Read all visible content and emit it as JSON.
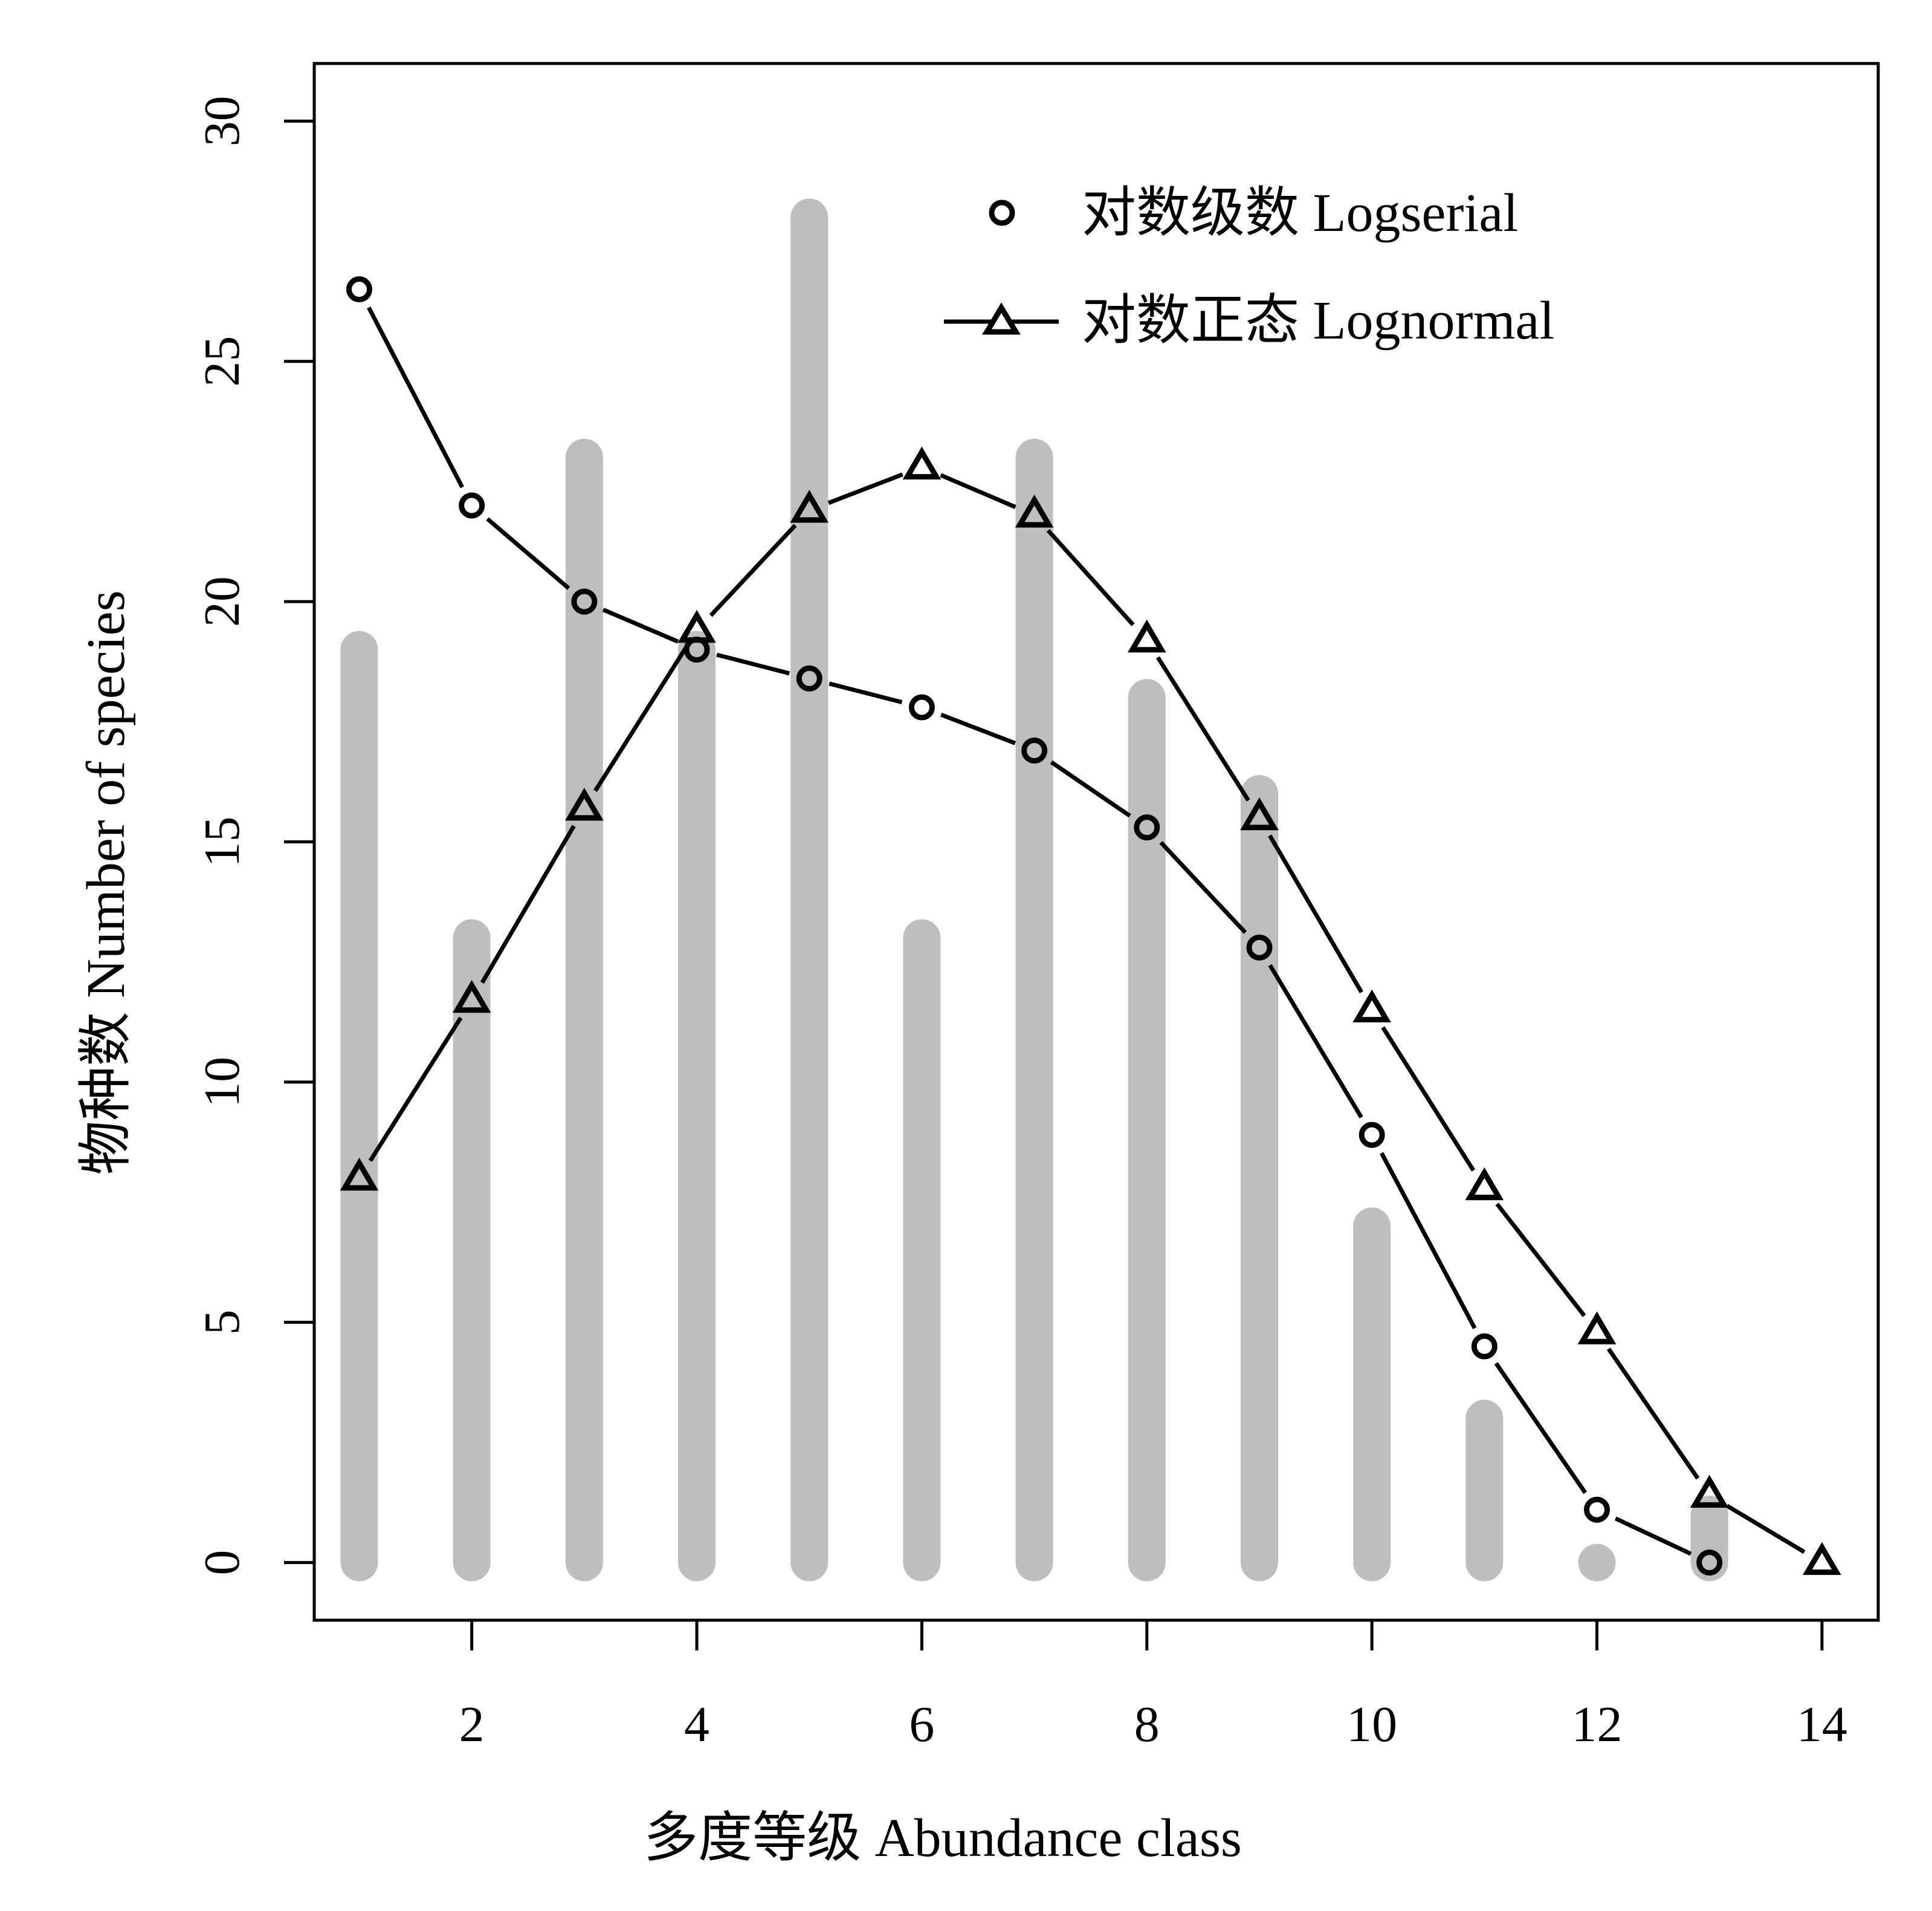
{
  "chart_data": {
    "type": "bar",
    "x": [
      1,
      2,
      3,
      4,
      5,
      6,
      7,
      8,
      9,
      10,
      11,
      12,
      13
    ],
    "observed": [
      19,
      13,
      23,
      19,
      28,
      13,
      23,
      18,
      16,
      7,
      3,
      0,
      1
    ],
    "series": [
      {
        "name": "对数级数  Logserial",
        "type": "line",
        "marker": "circle",
        "x": [
          1,
          2,
          3,
          4,
          5,
          6,
          7,
          8,
          9,
          10,
          11,
          12,
          13
        ],
        "values": [
          26.5,
          22.0,
          20.0,
          19.0,
          18.4,
          17.8,
          16.9,
          15.3,
          12.8,
          8.9,
          4.5,
          1.1,
          0
        ]
      },
      {
        "name": "对数正态  Lognormal",
        "type": "line",
        "marker": "triangle",
        "x": [
          1,
          2,
          3,
          4,
          5,
          6,
          7,
          8,
          9,
          10,
          11,
          12,
          13,
          14
        ],
        "values": [
          8.0,
          11.7,
          15.7,
          19.4,
          21.9,
          22.8,
          21.8,
          19.2,
          15.5,
          11.5,
          7.8,
          4.8,
          1.4,
          0
        ]
      }
    ],
    "xlabel": "多度等级 Abundance class",
    "ylabel": "物种数 Number of species",
    "x_ticks": [
      "2",
      "4",
      "6",
      "8",
      "10",
      "12",
      "14"
    ],
    "y_ticks": [
      "0",
      "5",
      "10",
      "15",
      "20",
      "25",
      "30"
    ],
    "xlim": [
      0.6,
      14.5
    ],
    "ylim": [
      -1.2,
      31.2
    ],
    "legend_position": "top-right",
    "colors": {
      "bars": "#bebebe",
      "lines": "#000000",
      "background": "#ffffff"
    }
  }
}
